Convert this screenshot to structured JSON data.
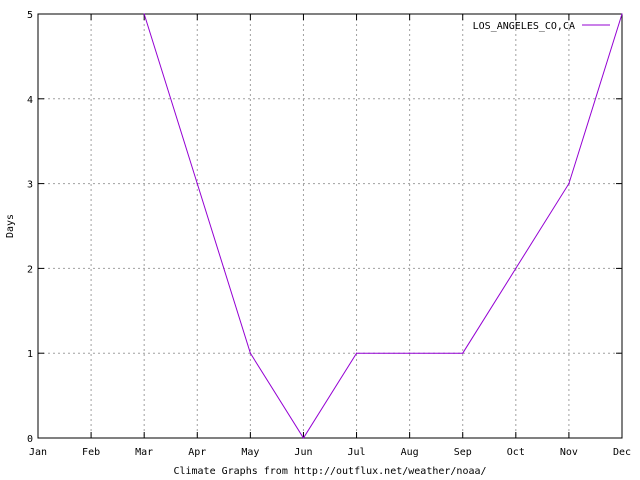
{
  "chart_data": {
    "type": "line",
    "title": "",
    "xlabel": "Climate Graphs from http://outflux.net/weather/noaa/",
    "ylabel": "Days",
    "categories": [
      "Jan",
      "Feb",
      "Mar",
      "Apr",
      "May",
      "Jun",
      "Jul",
      "Aug",
      "Sep",
      "Oct",
      "Nov",
      "Dec"
    ],
    "yticks": [
      "0",
      "1",
      "2",
      "3",
      "4",
      "5"
    ],
    "ylim": [
      0,
      5
    ],
    "grid": true,
    "legend_position": "top-right",
    "series": [
      {
        "name": "LOS_ANGELES_CO,CA",
        "color": "#9400d3",
        "values": [
          null,
          null,
          5,
          3,
          1,
          0,
          1,
          1,
          1,
          2,
          3,
          5
        ]
      }
    ]
  }
}
